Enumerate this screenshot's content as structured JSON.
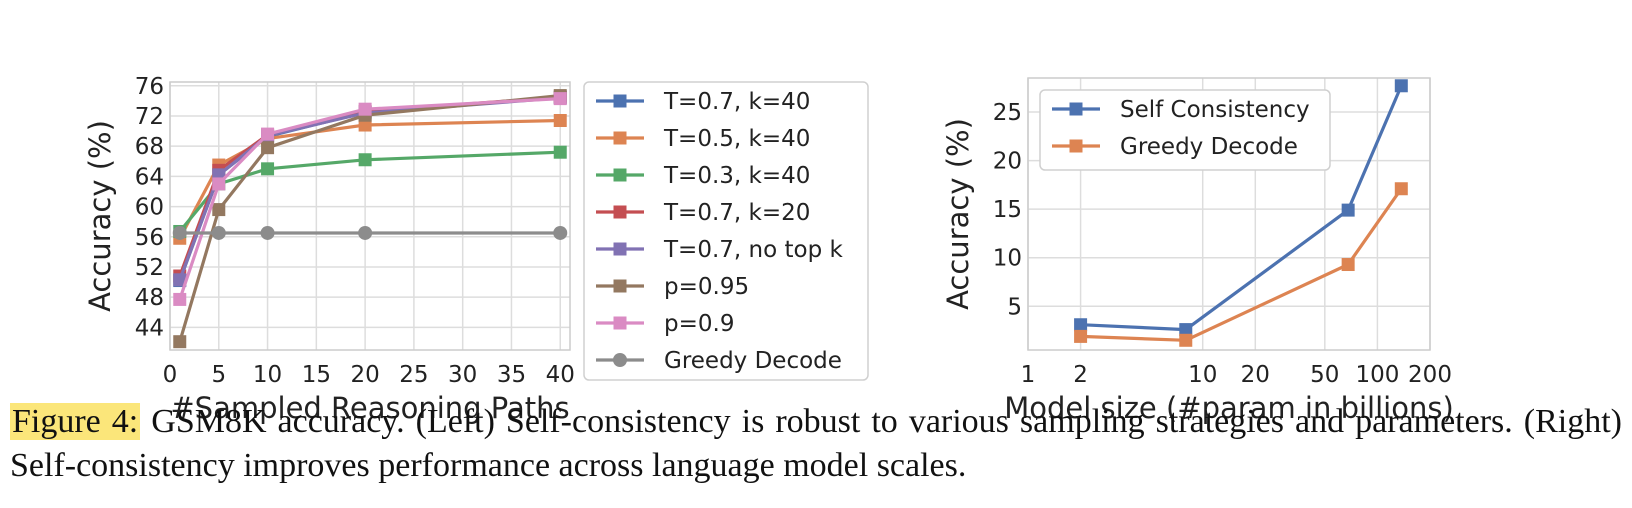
{
  "figure": {
    "caption_label": "Figure 4:",
    "caption_text": "GSM8K accuracy. (Left) Self-consistency is robust to various sampling strategies and parameters. (Right) Self-consistency improves performance across language model scales."
  },
  "chart_data": [
    {
      "type": "line",
      "xlabel": "#Sampled Reasoning Paths",
      "ylabel": "Accuracy (%)",
      "xlim": [
        0,
        41
      ],
      "ylim": [
        41,
        76.5
      ],
      "xticks": [
        0,
        5,
        10,
        15,
        20,
        25,
        30,
        35,
        40
      ],
      "yticks": [
        44,
        48,
        52,
        56,
        60,
        64,
        68,
        72,
        76
      ],
      "grid": true,
      "legend_position": "outside-right",
      "x": [
        1,
        5,
        10,
        20,
        40
      ],
      "series": [
        {
          "name": "T=0.7, k=40",
          "color": "#4c72b0",
          "marker": "square",
          "values": [
            50.2,
            64.2,
            69.3,
            72.5,
            74.5
          ]
        },
        {
          "name": "T=0.5, k=40",
          "color": "#dd8452",
          "marker": "square",
          "values": [
            55.8,
            65.5,
            69.0,
            70.8,
            71.4
          ]
        },
        {
          "name": "T=0.3, k=40",
          "color": "#55a868",
          "marker": "square",
          "values": [
            56.7,
            63.0,
            65.0,
            66.2,
            67.2
          ]
        },
        {
          "name": "T=0.7, k=20",
          "color": "#c44e52",
          "marker": "square",
          "values": [
            50.8,
            64.8,
            69.5,
            72.6,
            74.5
          ]
        },
        {
          "name": "T=0.7, no top k",
          "color": "#8172b3",
          "marker": "square",
          "values": [
            50.3,
            64.2,
            69.4,
            72.4,
            74.4
          ]
        },
        {
          "name": "p=0.95",
          "color": "#937860",
          "marker": "square",
          "values": [
            42.1,
            59.6,
            67.8,
            72.1,
            74.7
          ]
        },
        {
          "name": "p=0.9",
          "color": "#da8bc3",
          "marker": "square",
          "values": [
            47.7,
            63.0,
            69.6,
            72.9,
            74.3
          ]
        },
        {
          "name": "Greedy Decode",
          "color": "#8c8c8c",
          "marker": "circle",
          "values": [
            56.5,
            56.5,
            56.5,
            56.5,
            56.5
          ]
        }
      ]
    },
    {
      "type": "line",
      "xlabel": "Model size (#param in billions)",
      "ylabel": "Accuracy (%)",
      "xscale": "log",
      "xlim": [
        1,
        200
      ],
      "ylim": [
        0.5,
        28.5
      ],
      "xticks": [
        1,
        2,
        10,
        20,
        50,
        100,
        200
      ],
      "yticks": [
        5,
        10,
        15,
        20,
        25
      ],
      "grid": true,
      "legend_position": "upper-left",
      "x": [
        2,
        8,
        68,
        137
      ],
      "series": [
        {
          "name": "Self Consistency",
          "color": "#4c72b0",
          "marker": "square",
          "values": [
            3.1,
            2.6,
            14.9,
            27.7
          ]
        },
        {
          "name": "Greedy Decode",
          "color": "#dd8452",
          "marker": "square",
          "values": [
            1.9,
            1.5,
            9.3,
            17.1
          ]
        }
      ]
    }
  ]
}
